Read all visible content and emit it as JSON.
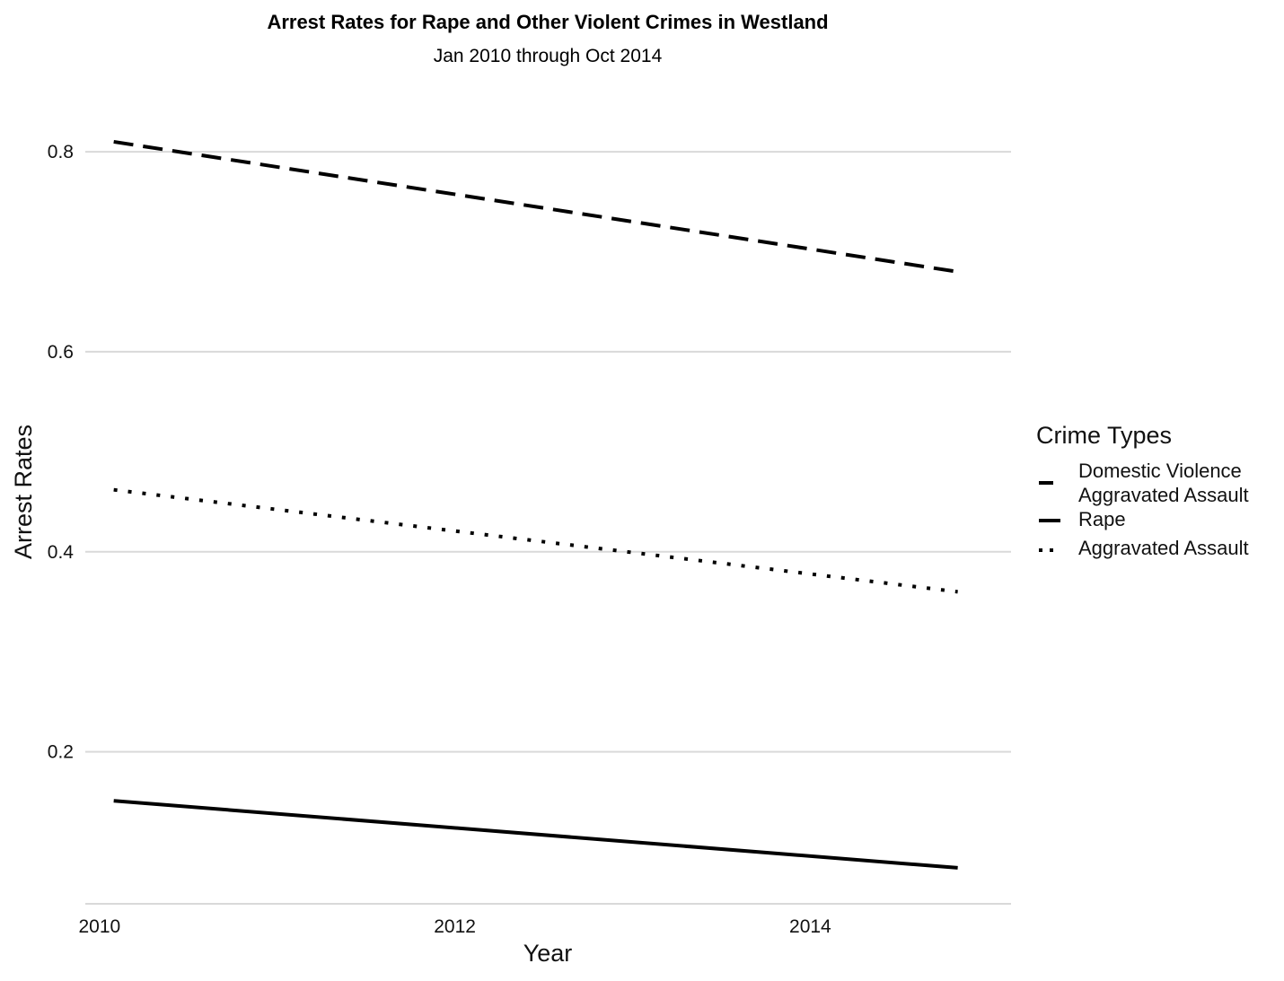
{
  "chart_data": {
    "type": "line",
    "title": "Arrest Rates for Rape and Other Violent Crimes in Westland",
    "subtitle": "Jan 2010 through Oct 2014",
    "xlabel": "Year",
    "ylabel": "Arrest Rates",
    "xlim": [
      2009.92,
      2015.13
    ],
    "ylim": [
      0.048,
      0.862
    ],
    "x_ticks": [
      2010,
      2012,
      2014
    ],
    "x_tick_labels": [
      "2010",
      "2012",
      "2014"
    ],
    "y_ticks": [
      0.2,
      0.4,
      0.6,
      0.8
    ],
    "y_tick_labels": [
      "0.2",
      "0.4",
      "0.6",
      "0.8"
    ],
    "grid": "horizontal major only",
    "legend_position": "right",
    "legend_title": "Crime Types",
    "series": [
      {
        "name": "Domestic Violence\nAggravated Assault",
        "linetype": "dashed",
        "color": "#000000",
        "x": [
          2010.08,
          2014.83
        ],
        "y": [
          0.81,
          0.68
        ]
      },
      {
        "name": "Rape",
        "linetype": "solid",
        "color": "#000000",
        "x": [
          2010.08,
          2014.83
        ],
        "y": [
          0.151,
          0.084
        ]
      },
      {
        "name": "Aggravated Assault",
        "linetype": "dotted",
        "color": "#000000",
        "x": [
          2010.08,
          2014.83
        ],
        "y": [
          0.462,
          0.36
        ]
      }
    ]
  }
}
